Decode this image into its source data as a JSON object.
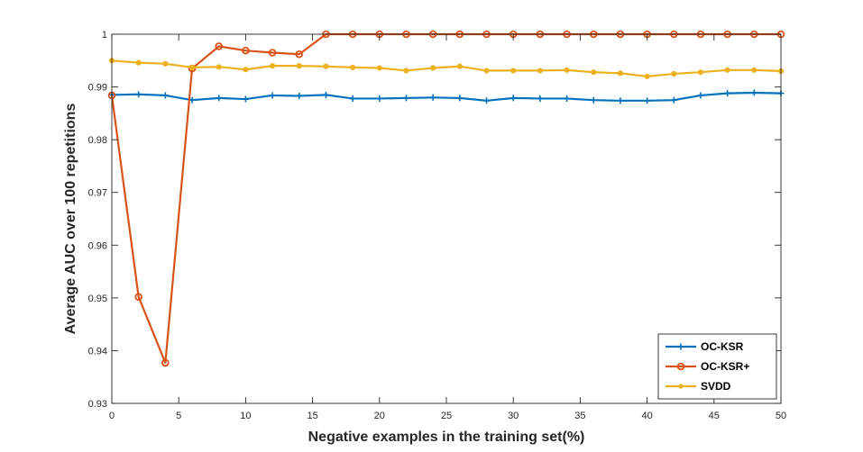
{
  "chart_data": {
    "type": "line",
    "title": "",
    "xlabel": "Negative examples in the training set(%)",
    "ylabel": "Average AUC over 100 repetitions",
    "xlim": [
      0,
      50
    ],
    "ylim": [
      0.93,
      1
    ],
    "xticks": [
      0,
      5,
      10,
      15,
      20,
      25,
      30,
      35,
      40,
      45,
      50
    ],
    "yticks": [
      0.93,
      0.94,
      0.95,
      0.96,
      0.97,
      0.98,
      0.99,
      1
    ],
    "xtick_labels": [
      "0",
      "5",
      "10",
      "15",
      "20",
      "25",
      "30",
      "35",
      "40",
      "45",
      "50"
    ],
    "ytick_labels": [
      "0.93",
      "0.94",
      "0.95",
      "0.96",
      "0.97",
      "0.98",
      "0.99",
      "1"
    ],
    "grid": false,
    "legend_position": "bottom-right",
    "x": [
      0,
      2,
      4,
      6,
      8,
      10,
      12,
      14,
      16,
      18,
      20,
      22,
      24,
      26,
      28,
      30,
      32,
      34,
      36,
      38,
      40,
      42,
      44,
      46,
      48,
      50
    ],
    "series": [
      {
        "name": "OC-KSR",
        "color": "#0072BD",
        "marker": "plus",
        "values": [
          0.9885,
          0.9886,
          0.9884,
          0.9875,
          0.9879,
          0.9877,
          0.9884,
          0.9883,
          0.9885,
          0.9878,
          0.9878,
          0.9879,
          0.988,
          0.9879,
          0.9874,
          0.9879,
          0.9878,
          0.9878,
          0.9875,
          0.9874,
          0.9874,
          0.9875,
          0.9884,
          0.9888,
          0.9889,
          0.9888
        ]
      },
      {
        "name": "OC-KSR+",
        "color": "#D95319",
        "marker": "circle",
        "values": [
          0.9884,
          0.9502,
          0.9377,
          0.9935,
          0.9977,
          0.9969,
          0.9965,
          0.9962,
          1.0,
          1.0,
          1.0,
          1.0,
          1.0,
          1.0,
          1.0,
          1.0,
          1.0,
          1.0,
          1.0,
          1.0,
          1.0,
          1.0,
          1.0,
          1.0,
          1.0,
          1.0
        ]
      },
      {
        "name": "SVDD",
        "color": "#EDB120",
        "marker": "dot",
        "values": [
          0.995,
          0.9946,
          0.9944,
          0.9937,
          0.9938,
          0.9933,
          0.994,
          0.994,
          0.9939,
          0.9937,
          0.9936,
          0.9931,
          0.9936,
          0.9939,
          0.9931,
          0.9931,
          0.9931,
          0.9932,
          0.9928,
          0.9926,
          0.992,
          0.9925,
          0.9928,
          0.9932,
          0.9932,
          0.993
        ]
      }
    ]
  }
}
